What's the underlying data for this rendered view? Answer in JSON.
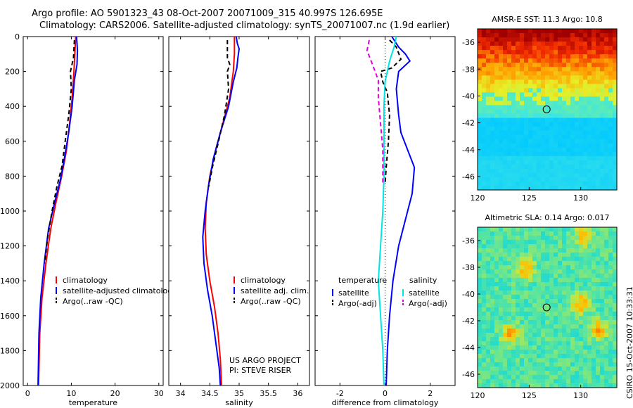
{
  "header": {
    "line1": "Argo profile: AO 5901323_43 08-Oct-2007 20071009_315 40.997S 126.695E",
    "line2": "Climatology: CARS2006. Satellite-adjusted climatology: synTS_20071007.nc (1.9d earlier)"
  },
  "side_credit": "CSIRO 15-Oct-2007 10:33:31",
  "project_note": [
    "US ARGO PROJECT",
    "PI: STEVE RISER"
  ],
  "colors": {
    "climatology": "#ff0000",
    "satellite": "#0000ff",
    "argo": "#000000",
    "sat_diff_sal": "#00e5e5",
    "argo_diff_sal": "#e000e0"
  },
  "chart_data": [
    {
      "type": "line",
      "xlabel": "temperature",
      "xlim": [
        -1,
        31
      ],
      "xticks": [
        0,
        10,
        20,
        30
      ],
      "ylim": [
        2000,
        0
      ],
      "yticks": [
        0,
        200,
        400,
        600,
        800,
        1000,
        1200,
        1400,
        1600,
        1800,
        2000
      ],
      "legend": [
        {
          "name": "climatology",
          "key": "climatology"
        },
        {
          "name": "satellite-adjusted climatology",
          "key": "satellite"
        },
        {
          "name": "Argo(..raw -QC)",
          "key": "argo"
        }
      ],
      "series": [
        {
          "key": "climatology",
          "dash": "",
          "points": [
            [
              11,
              0
            ],
            [
              10.8,
              100
            ],
            [
              10.6,
              200
            ],
            [
              10.2,
              350
            ],
            [
              9.6,
              500
            ],
            [
              8.9,
              650
            ],
            [
              7.8,
              800
            ],
            [
              6.5,
              950
            ],
            [
              5.3,
              1100
            ],
            [
              4.2,
              1300
            ],
            [
              3.3,
              1500
            ],
            [
              2.8,
              1700
            ],
            [
              2.5,
              2000
            ]
          ]
        },
        {
          "key": "satellite",
          "dash": "",
          "points": [
            [
              11.2,
              0
            ],
            [
              11.4,
              80
            ],
            [
              11.3,
              160
            ],
            [
              10.7,
              250
            ],
            [
              10.2,
              400
            ],
            [
              9.4,
              550
            ],
            [
              8.4,
              700
            ],
            [
              7.5,
              820
            ],
            [
              6.2,
              950
            ],
            [
              4.8,
              1100
            ],
            [
              3.8,
              1300
            ],
            [
              3.0,
              1500
            ],
            [
              2.6,
              1700
            ],
            [
              2.4,
              2000
            ]
          ]
        },
        {
          "key": "argo",
          "dash": "6,4",
          "points": [
            [
              10.7,
              20
            ],
            [
              10.5,
              120
            ],
            [
              9.8,
              200
            ],
            [
              10.0,
              300
            ],
            [
              9.4,
              450
            ],
            [
              8.6,
              600
            ],
            [
              7.9,
              740
            ],
            [
              6.7,
              860
            ],
            [
              5.6,
              1000
            ],
            [
              4.6,
              1150
            ],
            [
              3.9,
              1300
            ]
          ]
        }
      ]
    },
    {
      "type": "line",
      "xlabel": "salinity",
      "xlim": [
        33.8,
        36.2
      ],
      "xticks": [
        34,
        34.5,
        35,
        35.5,
        36
      ],
      "ylim": [
        2000,
        0
      ],
      "yticks": [
        0,
        200,
        400,
        600,
        800,
        1000,
        1200,
        1400,
        1600,
        1800,
        2000
      ],
      "legend": [
        {
          "name": "climatology",
          "key": "climatology"
        },
        {
          "name": "satellite adj. clim.",
          "key": "satellite"
        },
        {
          "name": "Argo(..raw -QC)",
          "key": "argo"
        }
      ],
      "series": [
        {
          "key": "climatology",
          "dash": "",
          "points": [
            [
              34.92,
              0
            ],
            [
              34.92,
              100
            ],
            [
              34.9,
              200
            ],
            [
              34.84,
              350
            ],
            [
              34.72,
              500
            ],
            [
              34.6,
              650
            ],
            [
              34.5,
              800
            ],
            [
              34.44,
              950
            ],
            [
              34.42,
              1100
            ],
            [
              34.44,
              1250
            ],
            [
              34.5,
              1400
            ],
            [
              34.58,
              1550
            ],
            [
              34.64,
              1700
            ],
            [
              34.68,
              1850
            ],
            [
              34.7,
              2000
            ]
          ]
        },
        {
          "key": "satellite",
          "dash": "",
          "points": [
            [
              34.95,
              0
            ],
            [
              34.97,
              40
            ],
            [
              35.0,
              70
            ],
            [
              34.98,
              120
            ],
            [
              34.96,
              180
            ],
            [
              34.9,
              260
            ],
            [
              34.82,
              400
            ],
            [
              34.68,
              550
            ],
            [
              34.56,
              700
            ],
            [
              34.48,
              850
            ],
            [
              34.42,
              1000
            ],
            [
              34.38,
              1150
            ],
            [
              34.4,
              1300
            ],
            [
              34.46,
              1450
            ],
            [
              34.54,
              1600
            ],
            [
              34.6,
              1750
            ],
            [
              34.66,
              1900
            ],
            [
              34.68,
              2000
            ]
          ]
        },
        {
          "key": "argo",
          "dash": "6,4",
          "points": [
            [
              34.8,
              20
            ],
            [
              34.8,
              120
            ],
            [
              34.84,
              160
            ],
            [
              34.8,
              200
            ],
            [
              34.82,
              300
            ],
            [
              34.75,
              450
            ],
            [
              34.65,
              600
            ],
            [
              34.55,
              740
            ],
            [
              34.48,
              860
            ]
          ]
        }
      ]
    },
    {
      "type": "line",
      "xlabel": "difference from climatology",
      "xlim": [
        -3.1,
        3.1
      ],
      "xticks": [
        -2,
        0,
        2
      ],
      "ylim": [
        2000,
        0
      ],
      "yticks": [
        0,
        200,
        400,
        600,
        800,
        1000,
        1200,
        1400,
        1600,
        1800,
        2000
      ],
      "legend_titles": [
        "temperature",
        "salinity"
      ],
      "legend": [
        {
          "name": "satellite",
          "key": "satellite",
          "col": 0
        },
        {
          "name": "Argo(-adj)",
          "key": "argo",
          "col": 0
        },
        {
          "name": "satellite",
          "key": "sat_diff_sal",
          "col": 1
        },
        {
          "name": "Argo(-adj)",
          "key": "argo_diff_sal",
          "col": 1
        }
      ],
      "series": [
        {
          "key": "satellite",
          "dash": "",
          "points": [
            [
              0.3,
              0
            ],
            [
              0.6,
              60
            ],
            [
              0.9,
              100
            ],
            [
              1.1,
              140
            ],
            [
              0.6,
              200
            ],
            [
              0.5,
              300
            ],
            [
              0.6,
              450
            ],
            [
              0.7,
              550
            ],
            [
              1.0,
              650
            ],
            [
              1.3,
              750
            ],
            [
              1.2,
              900
            ],
            [
              0.9,
              1050
            ],
            [
              0.6,
              1200
            ],
            [
              0.35,
              1400
            ],
            [
              0.2,
              1600
            ],
            [
              0.1,
              1800
            ],
            [
              0.05,
              2000
            ]
          ]
        },
        {
          "key": "argo",
          "dash": "6,4",
          "points": [
            [
              0.2,
              20
            ],
            [
              0.5,
              60
            ],
            [
              0.7,
              130
            ],
            [
              0.3,
              180
            ],
            [
              -0.2,
              200
            ],
            [
              -0.1,
              260
            ],
            [
              0.1,
              320
            ],
            [
              0.2,
              450
            ],
            [
              0.15,
              600
            ],
            [
              0.05,
              750
            ],
            [
              0.0,
              850
            ]
          ]
        },
        {
          "key": "sat_diff_sal",
          "dash": "",
          "points": [
            [
              0.5,
              0
            ],
            [
              0.4,
              60
            ],
            [
              0.2,
              140
            ],
            [
              0.0,
              260
            ],
            [
              -0.05,
              400
            ],
            [
              -0.05,
              600
            ],
            [
              -0.05,
              800
            ],
            [
              -0.1,
              1000
            ],
            [
              -0.2,
              1200
            ],
            [
              -0.3,
              1400
            ],
            [
              -0.2,
              1600
            ],
            [
              -0.1,
              1800
            ],
            [
              -0.05,
              2000
            ]
          ]
        },
        {
          "key": "argo_diff_sal",
          "dash": "6,4",
          "points": [
            [
              -0.7,
              20
            ],
            [
              -0.8,
              80
            ],
            [
              -0.5,
              180
            ],
            [
              -0.3,
              250
            ],
            [
              -0.3,
              350
            ],
            [
              -0.2,
              500
            ],
            [
              -0.1,
              650
            ],
            [
              -0.1,
              850
            ]
          ]
        }
      ]
    },
    {
      "type": "heatmap",
      "title": "AMSR-E SST: 11.3 Argo: 10.8",
      "xlim": [
        120,
        133.5
      ],
      "xticks": [
        120,
        125,
        130
      ],
      "ylim": [
        -47,
        -35
      ],
      "yticks": [
        -36,
        -38,
        -40,
        -42,
        -44,
        -46
      ],
      "float_position": [
        126.695,
        -40.997
      ],
      "palette": "sst"
    },
    {
      "type": "heatmap",
      "title": "Altimetric SLA: 0.14 Argo: 0.017",
      "xlim": [
        120,
        133.5
      ],
      "xticks": [
        120,
        125,
        130
      ],
      "ylim": [
        -47,
        -35
      ],
      "yticks": [
        -36,
        -38,
        -40,
        -42,
        -44,
        -46
      ],
      "float_position": [
        126.695,
        -40.997
      ],
      "palette": "sla"
    }
  ]
}
